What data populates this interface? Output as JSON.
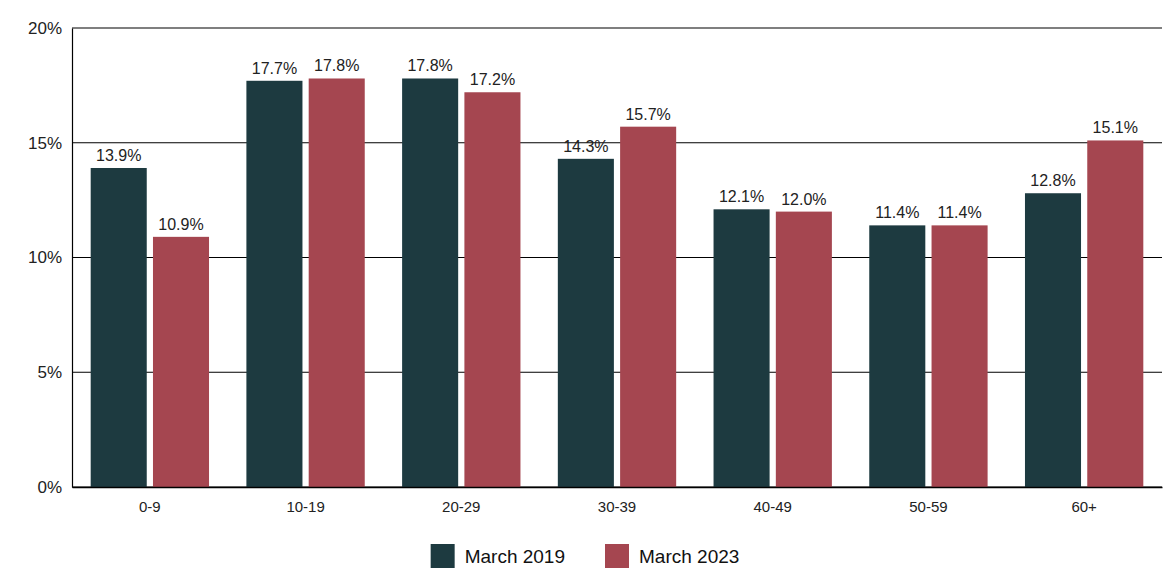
{
  "chart_data": {
    "type": "bar",
    "categories": [
      "0-9",
      "10-19",
      "20-29",
      "30-39",
      "40-49",
      "50-59",
      "60+"
    ],
    "series": [
      {
        "name": "March 2019",
        "color": "#1d3a40",
        "values": [
          13.9,
          17.7,
          17.8,
          14.3,
          12.1,
          11.4,
          12.8
        ],
        "value_labels": [
          "13.9%",
          "17.7%",
          "17.8%",
          "14.3%",
          "12.1%",
          "11.4%",
          "12.8%"
        ]
      },
      {
        "name": "March 2023",
        "color": "#a54650",
        "values": [
          10.9,
          17.8,
          17.2,
          15.7,
          12.0,
          11.4,
          15.1
        ],
        "value_labels": [
          "10.9%",
          "17.8%",
          "17.2%",
          "15.7%",
          "12.0%",
          "11.4%",
          "15.1%"
        ]
      }
    ],
    "ylim": [
      0,
      20
    ],
    "yticks": [
      {
        "value": 0,
        "label": "0%"
      },
      {
        "value": 5,
        "label": "5%"
      },
      {
        "value": 10,
        "label": "10%"
      },
      {
        "value": 15,
        "label": "15%"
      },
      {
        "value": 20,
        "label": "20%"
      }
    ],
    "grid": true,
    "legend": "bottom",
    "data_labels": true
  }
}
